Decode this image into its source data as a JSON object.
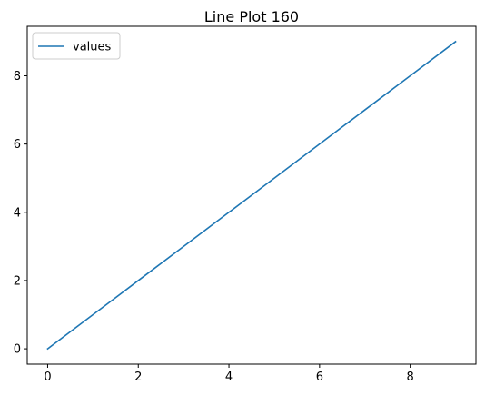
{
  "chart_data": {
    "type": "line",
    "title": "Line Plot 160",
    "xlabel": "",
    "ylabel": "",
    "x": [
      0,
      1,
      2,
      3,
      4,
      5,
      6,
      7,
      8,
      9
    ],
    "series": [
      {
        "name": "values",
        "color": "#1f77b4",
        "values": [
          0,
          1,
          2,
          3,
          4,
          5,
          6,
          7,
          8,
          9
        ]
      }
    ],
    "xlim": [
      -0.45,
      9.45
    ],
    "ylim": [
      -0.45,
      9.45
    ],
    "xticks": [
      0,
      2,
      4,
      6,
      8
    ],
    "yticks": [
      0,
      2,
      4,
      6,
      8
    ],
    "grid": false,
    "legend": "upper left"
  }
}
